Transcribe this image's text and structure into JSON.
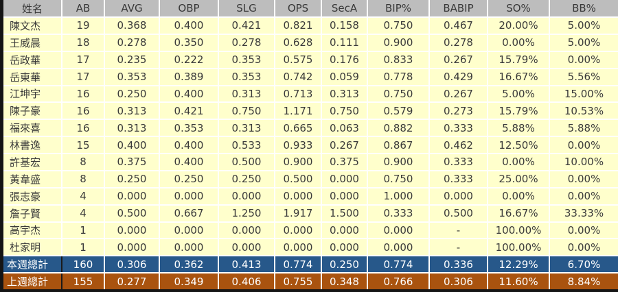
{
  "colors": {
    "header_bg": "#BDBDBD",
    "body_row_bg": "#FFFFCC",
    "this_week_total_bg": "#27588A",
    "last_week_total_bg": "#A9530F",
    "body_text": "#3A3A3A",
    "total_text": "#FFFFFF",
    "separator": "#FFFFFF",
    "frame_border": "#151515"
  },
  "chart_data": {
    "type": "table",
    "title": "",
    "columns": [
      "姓名",
      "AB",
      "AVG",
      "OBP",
      "SLG",
      "OPS",
      "SecA",
      "BIP%",
      "BABIP",
      "SO%",
      "BB%"
    ],
    "rows": [
      [
        "陳文杰",
        "19",
        "0.368",
        "0.400",
        "0.421",
        "0.821",
        "0.158",
        "0.750",
        "0.467",
        "20.00%",
        "5.00%"
      ],
      [
        "王威晨",
        "18",
        "0.278",
        "0.350",
        "0.278",
        "0.628",
        "0.111",
        "0.900",
        "0.278",
        "0.00%",
        "5.00%"
      ],
      [
        "岳政華",
        "17",
        "0.235",
        "0.222",
        "0.353",
        "0.575",
        "0.176",
        "0.833",
        "0.267",
        "15.79%",
        "0.00%"
      ],
      [
        "岳東華",
        "17",
        "0.353",
        "0.389",
        "0.353",
        "0.742",
        "0.059",
        "0.778",
        "0.429",
        "16.67%",
        "5.56%"
      ],
      [
        "江坤宇",
        "16",
        "0.250",
        "0.400",
        "0.313",
        "0.713",
        "0.313",
        "0.750",
        "0.267",
        "5.00%",
        "15.00%"
      ],
      [
        "陳子豪",
        "16",
        "0.313",
        "0.421",
        "0.750",
        "1.171",
        "0.750",
        "0.579",
        "0.273",
        "15.79%",
        "10.53%"
      ],
      [
        "福來喜",
        "16",
        "0.313",
        "0.353",
        "0.313",
        "0.665",
        "0.063",
        "0.882",
        "0.333",
        "5.88%",
        "5.88%"
      ],
      [
        "林書逸",
        "15",
        "0.400",
        "0.400",
        "0.533",
        "0.933",
        "0.267",
        "0.867",
        "0.462",
        "12.50%",
        "0.00%"
      ],
      [
        "許基宏",
        "8",
        "0.375",
        "0.400",
        "0.500",
        "0.900",
        "0.375",
        "0.900",
        "0.333",
        "0.00%",
        "10.00%"
      ],
      [
        "黃韋盛",
        "8",
        "0.250",
        "0.250",
        "0.250",
        "0.500",
        "0.000",
        "0.750",
        "0.333",
        "25.00%",
        "0.00%"
      ],
      [
        "張志豪",
        "4",
        "0.000",
        "0.000",
        "0.000",
        "0.000",
        "0.000",
        "1.000",
        "0.000",
        "0.00%",
        "0.00%"
      ],
      [
        "詹子賢",
        "4",
        "0.500",
        "0.667",
        "1.250",
        "1.917",
        "1.500",
        "0.333",
        "0.500",
        "16.67%",
        "33.33%"
      ],
      [
        "高宇杰",
        "1",
        "0.000",
        "0.000",
        "0.000",
        "0.000",
        "0.000",
        "0.000",
        "-",
        "100.00%",
        "0.00%"
      ],
      [
        "杜家明",
        "1",
        "0.000",
        "0.000",
        "0.000",
        "0.000",
        "0.000",
        "0.000",
        "-",
        "100.00%",
        "0.00%"
      ]
    ],
    "summary_rows": [
      {
        "label": "本週總計",
        "values": [
          "160",
          "0.306",
          "0.362",
          "0.413",
          "0.774",
          "0.250",
          "0.774",
          "0.336",
          "12.29%",
          "6.70%"
        ],
        "bg": "#27588A"
      },
      {
        "label": "上週總計",
        "values": [
          "155",
          "0.277",
          "0.349",
          "0.406",
          "0.755",
          "0.348",
          "0.766",
          "0.306",
          "11.60%",
          "8.84%"
        ],
        "bg": "#A9530F"
      }
    ]
  }
}
